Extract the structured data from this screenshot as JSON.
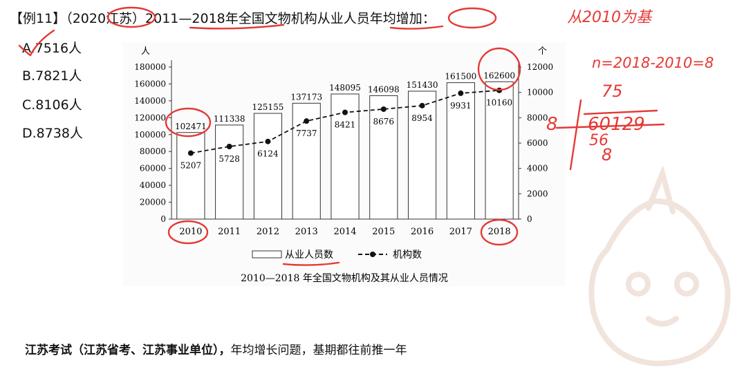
{
  "question": {
    "tag": "【例11】",
    "source": "（2020江苏）",
    "stem": "2011—2018年全国文物机构从业人员年均增加：",
    "options": [
      {
        "label": "A.7516人"
      },
      {
        "label": "B.7821人"
      },
      {
        "label": "C.8106人"
      },
      {
        "label": "D.8738人"
      }
    ]
  },
  "footer": {
    "bold": "江苏考试（江苏省考、江苏事业单位），",
    "rest": "年均增长问题，基期都往前推一年"
  },
  "annotations": {
    "base_note": "从2010为基",
    "n_formula": "n=2018-2010=8",
    "division_quotient": "75",
    "division_divisor": "8",
    "division_dividend": "60129",
    "division_step": "56",
    "division_bottom": "8"
  },
  "chart_data": {
    "type": "bar",
    "title": "2010—2018 年全国文物机构及其从业人员情况",
    "categories": [
      "2010",
      "2011",
      "2012",
      "2013",
      "2014",
      "2015",
      "2016",
      "2017",
      "2018"
    ],
    "left_axis_unit": "人",
    "right_axis_unit": "个",
    "ylim_left": [
      0,
      180000
    ],
    "ylim_right": [
      0,
      12000
    ],
    "left_ticks": [
      "0",
      "20000",
      "40000",
      "60000",
      "80000",
      "100000",
      "120000",
      "140000",
      "160000",
      "180000"
    ],
    "right_ticks": [
      "0",
      "2000",
      "4000",
      "6000",
      "8000",
      "10000",
      "12000"
    ],
    "series": [
      {
        "name": "从业人员数",
        "kind": "bar",
        "axis": "left",
        "values": [
          102471,
          111338,
          125155,
          137173,
          148095,
          146098,
          151430,
          161500,
          162600
        ]
      },
      {
        "name": "机构数",
        "kind": "line",
        "axis": "right",
        "values": [
          5207,
          5728,
          6124,
          7737,
          8421,
          8676,
          8954,
          9931,
          10160
        ]
      }
    ],
    "grid": false,
    "legend_position": "bottom"
  }
}
